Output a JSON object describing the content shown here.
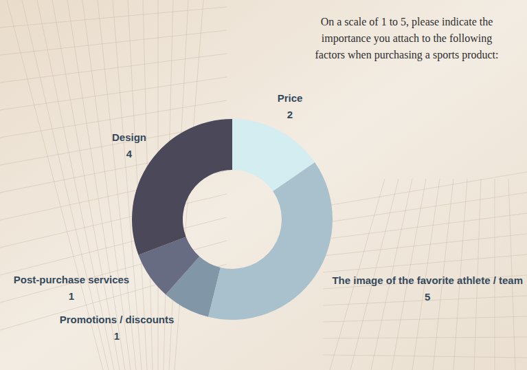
{
  "chart_data": {
    "type": "pie",
    "title": "On a scale of 1 to 5, please indicate the importance you attach to the following factors when purchasing a sports product:",
    "categories": [
      "Price",
      "The image of the favorite athlete / team",
      "Promotions / discounts",
      "Post-purchase services",
      "Design"
    ],
    "values": [
      2,
      5,
      1,
      1,
      4
    ],
    "colors": [
      "#d4edf1",
      "#a9c1cc",
      "#8197a7",
      "#676c82",
      "#4a4859"
    ],
    "data_labels": true
  }
}
